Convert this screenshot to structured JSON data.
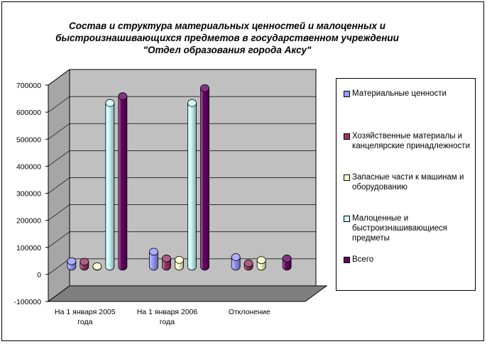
{
  "chart_data": {
    "type": "bar",
    "title_lines": [
      "Состав и структура материальных ценностей и малоценных и",
      "быстроизнашивающихся предметов в государственном учреждении",
      "\"Отдел образования города Аксу\""
    ],
    "categories": [
      [
        "На 1 января 2005",
        "года"
      ],
      [
        "На 1 января 2006",
        "года"
      ],
      [
        "Отклонение"
      ]
    ],
    "series": [
      {
        "name": "Материальные ценности",
        "color": "#9999ff",
        "values": [
          20000,
          55000,
          35000
        ]
      },
      {
        "name": "Хозяйственные материалы и канцелярские принадлежности",
        "color": "#993366",
        "values": [
          18000,
          30000,
          12000
        ]
      },
      {
        "name": "Запасные части к машинам и оборудованию",
        "color": "#ffffcc",
        "values": [
          1000,
          25000,
          24000
        ]
      },
      {
        "name": "Малоценные и быстроизнашивающиеся предметы",
        "color": "#ccffff",
        "values": [
          605000,
          605000,
          0
        ]
      },
      {
        "name": "Всего",
        "color": "#660066",
        "values": [
          630000,
          660000,
          30000
        ]
      }
    ],
    "ylim": [
      -100000,
      700000
    ],
    "yticks": [
      "700000",
      "600000",
      "500000",
      "400000",
      "300000",
      "200000",
      "100000",
      "0",
      "-100000"
    ],
    "grid": true,
    "legend_position": "right"
  }
}
